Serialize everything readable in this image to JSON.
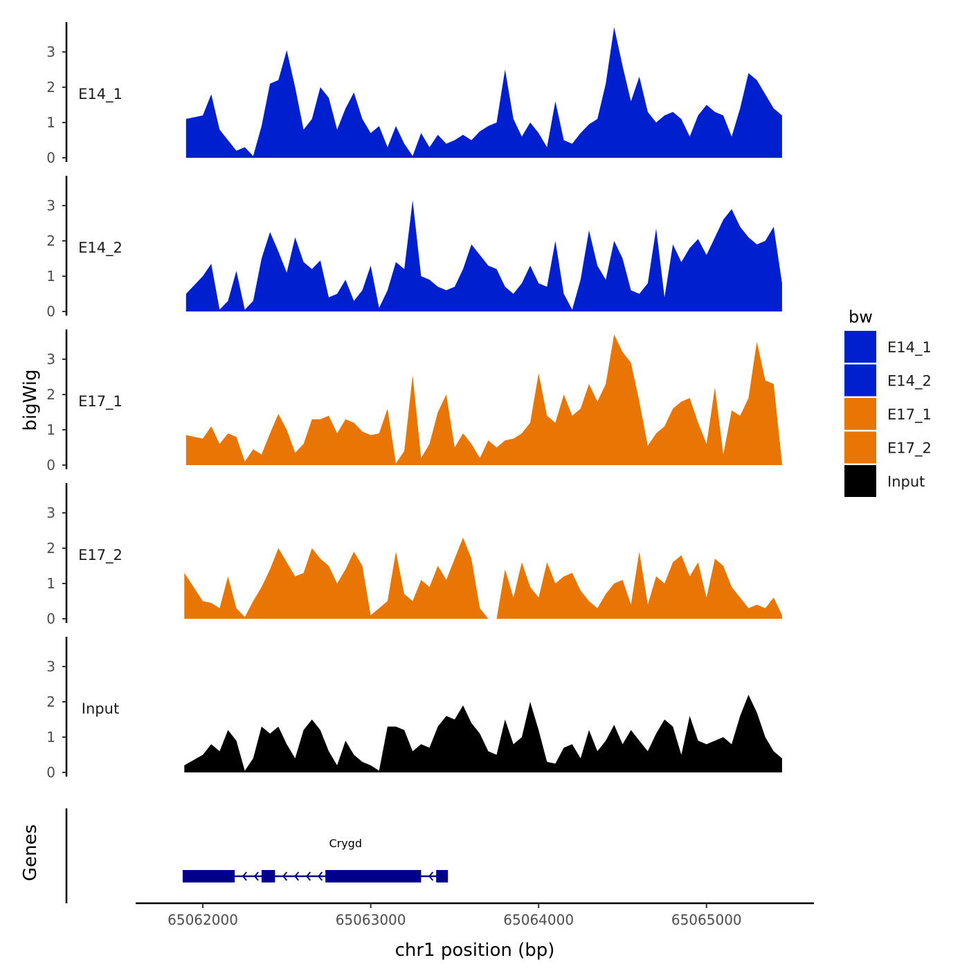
{
  "chart_data": {
    "type": "area",
    "ylabel": "bigWig",
    "xlabel": "chr1 position (bp)",
    "xlim": [
      65061600,
      65065640
    ],
    "ylim": [
      0,
      3.8
    ],
    "yticks": [
      0,
      1,
      2,
      3
    ],
    "xticks": [
      65062000,
      65063000,
      65064000,
      65065000
    ],
    "xtick_labels": [
      "65062000",
      "65063000",
      "65064000",
      "65065000"
    ],
    "genes_label": "Genes",
    "legend": {
      "title": "bw",
      "entries": [
        {
          "name": "E14_1",
          "color": "#0020d0"
        },
        {
          "name": "E14_2",
          "color": "#0020d0"
        },
        {
          "name": "E17_1",
          "color": "#e87504"
        },
        {
          "name": "E17_2",
          "color": "#e87504"
        },
        {
          "name": "Input",
          "color": "#000000"
        }
      ]
    },
    "series": [
      {
        "name": "E14_1",
        "color": "#0020d0",
        "x": [
          65061900,
          65062000,
          65062050,
          65062100,
          65062150,
          65062200,
          65062250,
          65062300,
          65062350,
          65062400,
          65062450,
          65062500,
          65062550,
          65062600,
          65062650,
          65062700,
          65062750,
          65062800,
          65062850,
          65062900,
          65062950,
          65063000,
          65063050,
          65063100,
          65063150,
          65063200,
          65063250,
          65063300,
          65063350,
          65063400,
          65063450,
          65063500,
          65063550,
          65063600,
          65063650,
          65063700,
          65063750,
          65063800,
          65063850,
          65063900,
          65063950,
          65064000,
          65064050,
          65064100,
          65064150,
          65064200,
          65064250,
          65064300,
          65064350,
          65064400,
          65064450,
          65064500,
          65064550,
          65064600,
          65064650,
          65064700,
          65064750,
          65064800,
          65064850,
          65064900,
          65064950,
          65065000,
          65065050,
          65065100,
          65065150,
          65065200,
          65065250,
          65065300,
          65065350,
          65065400,
          65065450
        ],
        "values": [
          1.1,
          1.2,
          1.8,
          0.8,
          0.5,
          0.2,
          0.3,
          0.05,
          0.9,
          2.1,
          2.2,
          3.05,
          2.0,
          0.8,
          1.1,
          2.0,
          1.7,
          0.8,
          1.4,
          1.85,
          1.1,
          0.7,
          0.9,
          0.3,
          0.9,
          0.4,
          0.05,
          0.7,
          0.3,
          0.65,
          0.4,
          0.5,
          0.65,
          0.5,
          0.75,
          0.9,
          1.0,
          2.5,
          1.1,
          0.6,
          1.0,
          0.7,
          0.3,
          1.6,
          0.5,
          0.4,
          0.7,
          0.95,
          1.1,
          2.1,
          3.7,
          2.6,
          1.6,
          2.3,
          1.3,
          1.0,
          1.2,
          1.3,
          1.1,
          0.6,
          1.2,
          1.5,
          1.3,
          1.2,
          0.6,
          1.4,
          2.4,
          2.2,
          1.8,
          1.4,
          1.2
        ]
      },
      {
        "name": "E14_2",
        "color": "#0020d0",
        "x": [
          65061900,
          65062000,
          65062050,
          65062100,
          65062150,
          65062200,
          65062250,
          65062300,
          65062350,
          65062400,
          65062450,
          65062500,
          65062550,
          65062600,
          65062650,
          65062700,
          65062750,
          65062800,
          65062850,
          65062900,
          65062950,
          65063000,
          65063050,
          65063100,
          65063150,
          65063200,
          65063250,
          65063300,
          65063350,
          65063400,
          65063450,
          65063500,
          65063550,
          65063600,
          65063650,
          65063700,
          65063750,
          65063800,
          65063850,
          65063900,
          65063950,
          65064000,
          65064050,
          65064100,
          65064150,
          65064200,
          65064250,
          65064300,
          65064350,
          65064400,
          65064450,
          65064500,
          65064550,
          65064600,
          65064650,
          65064700,
          65064750,
          65064800,
          65064850,
          65064900,
          65064950,
          65065000,
          65065050,
          65065100,
          65065150,
          65065200,
          65065250,
          65065300,
          65065350,
          65065400,
          65065450
        ],
        "values": [
          0.5,
          1.0,
          1.35,
          0.05,
          0.3,
          1.15,
          0.05,
          0.3,
          1.5,
          2.25,
          1.7,
          1.1,
          2.1,
          1.4,
          1.2,
          1.45,
          0.4,
          0.5,
          0.9,
          0.3,
          0.6,
          1.3,
          0.1,
          0.6,
          1.4,
          1.2,
          3.15,
          1.0,
          0.9,
          0.7,
          0.6,
          0.7,
          1.2,
          1.9,
          1.6,
          1.3,
          1.2,
          0.7,
          0.5,
          0.8,
          1.3,
          0.8,
          0.7,
          2.0,
          0.5,
          0.05,
          0.9,
          2.3,
          1.3,
          0.9,
          2.0,
          1.5,
          0.6,
          0.5,
          0.8,
          2.35,
          0.4,
          1.9,
          1.4,
          1.8,
          2.05,
          1.6,
          2.1,
          2.6,
          2.9,
          2.4,
          2.1,
          1.9,
          2.0,
          2.4,
          0.8
        ]
      },
      {
        "name": "E17_1",
        "color": "#e87504",
        "x": [
          65061900,
          65062000,
          65062050,
          65062100,
          65062150,
          65062200,
          65062250,
          65062300,
          65062350,
          65062400,
          65062450,
          65062500,
          65062550,
          65062600,
          65062650,
          65062700,
          65062750,
          65062800,
          65062850,
          65062900,
          65062950,
          65063000,
          65063050,
          65063100,
          65063150,
          65063200,
          65063250,
          65063300,
          65063350,
          65063400,
          65063450,
          65063500,
          65063550,
          65063600,
          65063650,
          65063700,
          65063750,
          65063800,
          65063850,
          65063900,
          65063950,
          65064000,
          65064050,
          65064100,
          65064150,
          65064200,
          65064250,
          65064300,
          65064350,
          65064400,
          65064450,
          65064500,
          65064550,
          65064600,
          65064650,
          65064700,
          65064750,
          65064800,
          65064850,
          65064900,
          65064950,
          65065000,
          65065050,
          65065100,
          65065150,
          65065200,
          65065250,
          65065300,
          65065350,
          65065400,
          65065450
        ],
        "values": [
          0.85,
          0.75,
          1.1,
          0.6,
          0.9,
          0.8,
          0.1,
          0.45,
          0.3,
          0.9,
          1.45,
          1.0,
          0.35,
          0.6,
          1.3,
          1.3,
          1.4,
          0.9,
          1.3,
          1.2,
          0.95,
          0.85,
          0.9,
          1.6,
          0.05,
          0.4,
          2.55,
          0.2,
          0.6,
          1.5,
          2.0,
          0.5,
          0.9,
          0.6,
          0.2,
          0.7,
          0.5,
          0.7,
          0.75,
          0.9,
          1.2,
          2.6,
          1.4,
          1.2,
          2.0,
          1.4,
          1.6,
          2.3,
          1.8,
          2.3,
          3.7,
          3.2,
          2.9,
          1.8,
          0.55,
          0.9,
          1.1,
          1.6,
          1.8,
          1.9,
          1.2,
          0.6,
          2.2,
          0.3,
          1.55,
          1.4,
          1.9,
          3.5,
          2.4,
          2.3,
          0.05
        ]
      },
      {
        "name": "E17_2",
        "color": "#e87504",
        "x": [
          65061890,
          65062000,
          65062050,
          65062100,
          65062150,
          65062200,
          65062250,
          65062300,
          65062350,
          65062400,
          65062450,
          65062500,
          65062550,
          65062600,
          65062650,
          65062700,
          65062750,
          65062800,
          65062850,
          65062900,
          65062950,
          65063000,
          65063050,
          65063100,
          65063150,
          65063200,
          65063250,
          65063300,
          65063350,
          65063400,
          65063450,
          65063500,
          65063550,
          65063600,
          65063650,
          65063700,
          65063750,
          65063800,
          65063850,
          65063900,
          65063950,
          65064000,
          65064050,
          65064100,
          65064150,
          65064200,
          65064250,
          65064300,
          65064350,
          65064400,
          65064450,
          65064500,
          65064550,
          65064600,
          65064650,
          65064700,
          65064750,
          65064800,
          65064850,
          65064900,
          65064950,
          65065000,
          65065050,
          65065100,
          65065150,
          65065200,
          65065250,
          65065300,
          65065350,
          65065400,
          65065450
        ],
        "values": [
          1.3,
          0.5,
          0.45,
          0.3,
          1.2,
          0.3,
          0.05,
          0.5,
          0.9,
          1.4,
          2.0,
          1.6,
          1.2,
          1.3,
          2.0,
          1.7,
          1.5,
          1.0,
          1.4,
          1.9,
          1.5,
          0.1,
          0.3,
          0.5,
          1.9,
          0.7,
          0.5,
          1.1,
          0.9,
          1.5,
          1.1,
          1.7,
          2.3,
          1.7,
          0.3,
          0.0,
          0.0,
          1.4,
          0.6,
          1.6,
          0.9,
          0.6,
          1.6,
          1.0,
          1.2,
          1.3,
          0.8,
          0.5,
          0.3,
          0.7,
          1.0,
          1.1,
          0.4,
          1.9,
          0.4,
          1.2,
          1.0,
          1.6,
          1.8,
          1.2,
          1.6,
          0.6,
          1.7,
          1.5,
          0.9,
          0.6,
          0.3,
          0.4,
          0.3,
          0.6,
          0.1
        ]
      },
      {
        "name": "Input",
        "color": "#000000",
        "x": [
          65061890,
          65062000,
          65062050,
          65062100,
          65062150,
          65062200,
          65062250,
          65062300,
          65062350,
          65062400,
          65062450,
          65062500,
          65062550,
          65062600,
          65062650,
          65062700,
          65062750,
          65062800,
          65062850,
          65062900,
          65062950,
          65063000,
          65063050,
          65063100,
          65063150,
          65063200,
          65063250,
          65063300,
          65063350,
          65063400,
          65063450,
          65063500,
          65063550,
          65063600,
          65063650,
          65063700,
          65063750,
          65063800,
          65063850,
          65063900,
          65063950,
          65064000,
          65064050,
          65064100,
          65064150,
          65064200,
          65064250,
          65064300,
          65064350,
          65064400,
          65064450,
          65064500,
          65064550,
          65064600,
          65064650,
          65064700,
          65064750,
          65064800,
          65064850,
          65064900,
          65064950,
          65065000,
          65065050,
          65065100,
          65065150,
          65065200,
          65065250,
          65065300,
          65065350,
          65065400,
          65065450
        ],
        "values": [
          0.2,
          0.5,
          0.8,
          0.6,
          1.2,
          0.9,
          0.05,
          0.4,
          1.3,
          1.1,
          1.3,
          0.8,
          0.4,
          1.2,
          1.5,
          1.2,
          0.6,
          0.2,
          0.9,
          0.5,
          0.3,
          0.2,
          0.05,
          1.3,
          1.3,
          1.2,
          0.6,
          0.8,
          0.7,
          1.3,
          1.6,
          1.5,
          1.9,
          1.4,
          1.1,
          0.6,
          0.5,
          1.5,
          0.8,
          1.0,
          2.0,
          1.2,
          0.3,
          0.25,
          0.7,
          0.8,
          0.4,
          1.2,
          0.6,
          0.9,
          1.35,
          0.8,
          1.2,
          0.9,
          0.6,
          1.1,
          1.5,
          1.3,
          0.5,
          1.6,
          0.9,
          0.8,
          0.9,
          1.0,
          0.8,
          1.6,
          2.2,
          1.7,
          1.0,
          0.6,
          0.4
        ]
      }
    ],
    "genes": [
      {
        "name": "Crygd",
        "start": 65061880,
        "end": 65063460,
        "strand": "-",
        "exons": [
          [
            65061880,
            65062190
          ],
          [
            65062350,
            65062430
          ],
          [
            65062730,
            65063300
          ],
          [
            65063390,
            65063460
          ]
        ]
      }
    ]
  }
}
